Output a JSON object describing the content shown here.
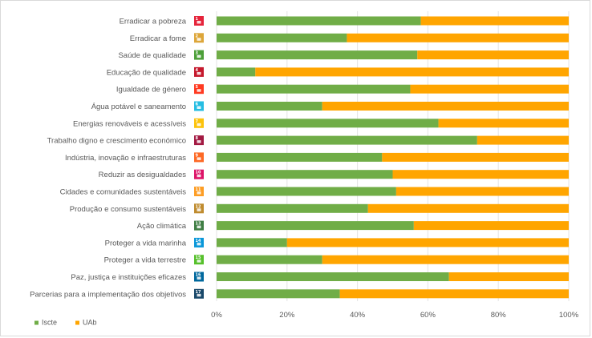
{
  "chart_data": {
    "type": "bar",
    "orientation": "horizontal",
    "stacking": "percent",
    "categories": [
      "Erradicar a pobreza",
      "Erradicar a fome",
      "Saúde de qualidade",
      "Educação de qualidade",
      "Igualdade de género",
      "Água potável e saneamento",
      "Energias renováveis e acessíveis",
      "Trabalho digno e crescimento económico",
      "Indústria, inovação e infraestruturas",
      "Reduzir as desigualdades",
      "Cidades e comunidades sustentáveis",
      "Produção e consumo sustentáveis",
      "Ação climática",
      "Proteger a vida marinha",
      "Proteger a vida terrestre",
      "Paz, justiça e instituições eficazes",
      "Parcerias para a implementação dos objetivos"
    ],
    "series": [
      {
        "name": "Iscte",
        "color": "#70ad47",
        "values": [
          58,
          37,
          57,
          11,
          55,
          30,
          63,
          74,
          47,
          50,
          51,
          43,
          56,
          20,
          30,
          66,
          35
        ]
      },
      {
        "name": "UAb",
        "color": "#ffa500",
        "values": [
          42,
          63,
          43,
          89,
          45,
          70,
          37,
          26,
          53,
          50,
          49,
          57,
          44,
          80,
          70,
          34,
          65
        ]
      }
    ],
    "xlim": [
      0,
      100
    ],
    "xticks": [
      "0%",
      "20%",
      "40%",
      "60%",
      "80%",
      "100%"
    ],
    "grid": true,
    "legend_position": "bottom-left",
    "category_icons": {
      "colors": [
        "#e5243b",
        "#dda63a",
        "#4c9f38",
        "#c5192d",
        "#ff3a21",
        "#26bde2",
        "#fcc30b",
        "#a21942",
        "#fd6925",
        "#dd1367",
        "#fd9d24",
        "#bf8b2e",
        "#3f7e44",
        "#0a97d9",
        "#56c02b",
        "#00689d",
        "#19486a"
      ],
      "numbers": [
        "1",
        "2",
        "3",
        "4",
        "5",
        "6",
        "7",
        "8",
        "9",
        "10",
        "11",
        "12",
        "13",
        "14",
        "15",
        "16",
        "17"
      ]
    }
  }
}
